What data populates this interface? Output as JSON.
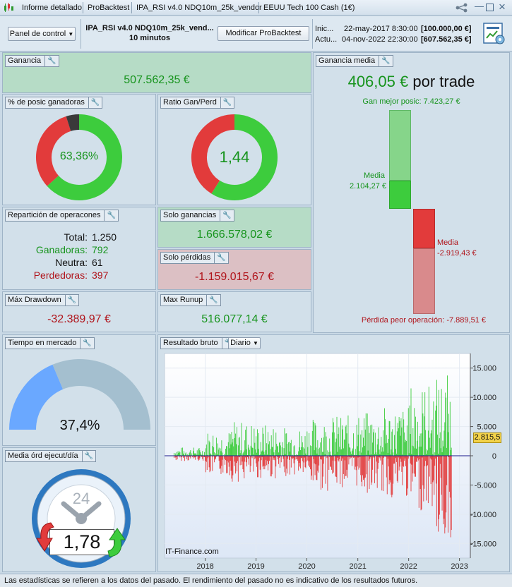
{
  "titlebar": {
    "tabs": [
      "Informe detallado",
      "ProBacktest",
      "IPA_RSI v4.0 NDQ10m_25k_vendor",
      "EEUU Tech 100 Cash (1€)"
    ],
    "controls": [
      "share-icon",
      "minimize-icon",
      "maximize-icon",
      "close-icon"
    ]
  },
  "toolbar": {
    "panel_button": "Panel de control",
    "strategy_name": "IPA_RSI v4.0 NDQ10m_25k_vend...",
    "timeframe": "10 minutos",
    "modify_button": "Modificar ProBacktest",
    "start_label": "Inic...",
    "start_date": "22-may-2017 8:30:00",
    "start_capital": "[100.000,00 €]",
    "current_label": "Actu...",
    "current_date": "04-nov-2022 22:30:00",
    "current_capital": "[607.562,35 €]"
  },
  "ganancia": {
    "label": "Ganancia",
    "value": "507.562,35 €"
  },
  "ganancia_media": {
    "label": "Ganancia media",
    "value": "406,05 €",
    "suffix": "por trade",
    "best": "Gan mejor posic: 7.423,27 €",
    "media_label": "Media",
    "gain_media": "2.104,27 €",
    "loss_media": "-2.919,43 €",
    "worst": "Pérdida peor operación: -7.889,51 €"
  },
  "pct_ganadoras": {
    "label": "% de posic ganadoras",
    "value": "63,36%",
    "green": 63.36,
    "dark": 4.88,
    "red": 31.76
  },
  "ratio": {
    "label": "Ratio Gan/Perd",
    "value": "1,44",
    "green": 59.0,
    "red": 41.0
  },
  "reparticion": {
    "label": "Repartición de operacones",
    "rows": [
      {
        "k": "Total:",
        "v": "1.250",
        "cls": ""
      },
      {
        "k": "Ganadoras:",
        "v": "792",
        "cls": "gval"
      },
      {
        "k": "Neutra:",
        "v": "61",
        "cls": ""
      },
      {
        "k": "Perdedoras:",
        "v": "397",
        "cls": "rval"
      }
    ]
  },
  "solo_ganancias": {
    "label": "Solo ganancias",
    "value": "1.666.578,02 €"
  },
  "solo_perdidas": {
    "label": "Solo pérdidas",
    "value": "-1.159.015,67 €"
  },
  "max_drawdown": {
    "label": "Máx Drawdown",
    "value": "-32.389,97 €"
  },
  "max_runup": {
    "label": "Max Runup",
    "value": "516.077,14 €"
  },
  "tiempo_mercado": {
    "label": "Tiempo en mercado",
    "value": "37,4%",
    "fraction": 0.374
  },
  "media_ord": {
    "label": "Media órd ejecut/día",
    "value": "1,78",
    "clock_number": "24"
  },
  "resultado_bruto": {
    "label": "Resultado bruto",
    "dropdown": "Diario",
    "watermark": "IT-Finance.com",
    "current_badge": "2.815,5"
  },
  "colors": {
    "green": "#3dcc3d",
    "red": "#e23b3b",
    "accent": "#17941d",
    "loss": "#b0141b"
  },
  "chart_data": {
    "type": "bar",
    "x_ticks": [
      "2018",
      "2019",
      "2020",
      "2021",
      "2022",
      "2023"
    ],
    "y_ticks": [
      "15.000",
      "10.000",
      "5.000",
      "0",
      "-5.000",
      "-10.000",
      "-15.000"
    ],
    "ylim": [
      -17500,
      17500
    ],
    "x_start": "2017-05-22",
    "x_end": "2022-11-04",
    "series": [
      {
        "values": [
          {
            "period": "2017-H2",
            "max_gain": 1500,
            "max_loss": -900
          },
          {
            "period": "2018-H1",
            "max_gain": 4500,
            "max_loss": -3500
          },
          {
            "period": "2018-H2",
            "max_gain": 6000,
            "max_loss": -4500
          },
          {
            "period": "2019-H1",
            "max_gain": 5500,
            "max_loss": -4000
          },
          {
            "period": "2019-H2",
            "max_gain": 5000,
            "max_loss": -3500
          },
          {
            "period": "2020-H1",
            "max_gain": 6500,
            "max_loss": -6000
          },
          {
            "period": "2020-H2",
            "max_gain": 7000,
            "max_loss": -5500
          },
          {
            "period": "2021-H1",
            "max_gain": 7500,
            "max_loss": -6500
          },
          {
            "period": "2021-H2",
            "max_gain": 8500,
            "max_loss": -7500
          },
          {
            "period": "2022-H1",
            "max_gain": 12500,
            "max_loss": -9500
          },
          {
            "period": "2022-H2",
            "max_gain": 14000,
            "max_loss": -14800
          }
        ]
      }
    ]
  },
  "footer": "Las estadísticas se refieren a los datos del pasado. El rendimiento del pasado no es indicativo de los resultados futuros."
}
